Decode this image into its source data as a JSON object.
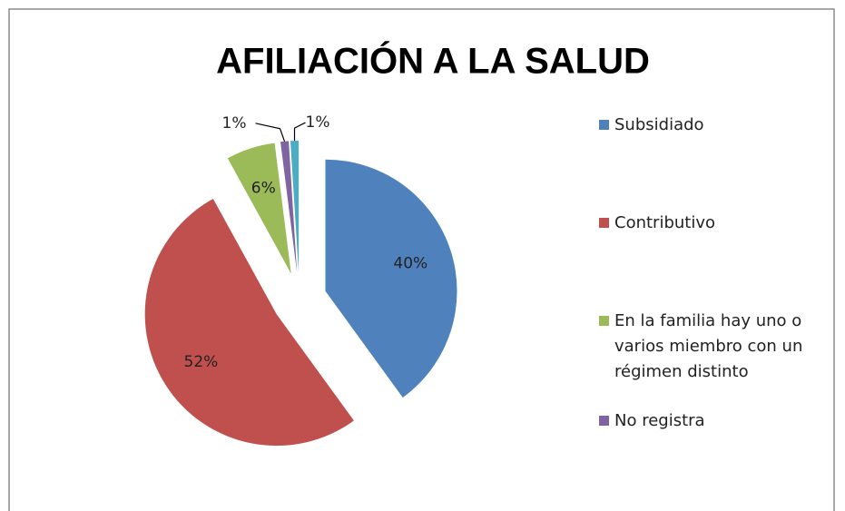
{
  "chart_data": {
    "type": "pie",
    "title": "AFILIACIÓN A LA SALUD",
    "categories": [
      "Subsidiado",
      "Contributivo",
      "En la familia hay uno o varios miembro con un régimen distinto",
      "No registra",
      null
    ],
    "values": [
      40,
      52,
      6,
      1,
      1
    ],
    "value_labels": [
      "40%",
      "52%",
      "6%",
      "1%",
      "1%"
    ],
    "colors": [
      "#4f81bd",
      "#c0504d",
      "#9bbb59",
      "#8064a2",
      "#4bacc6"
    ],
    "legend": "right"
  }
}
